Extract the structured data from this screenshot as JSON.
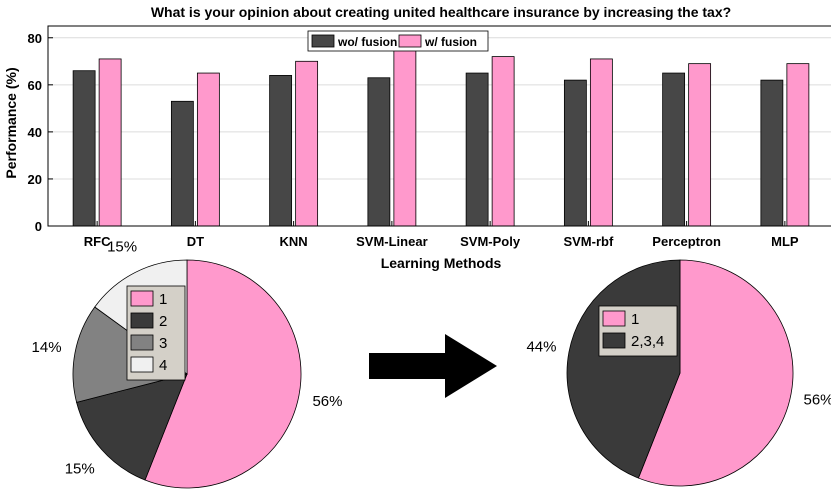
{
  "colors": {
    "without_fusion": "#474747",
    "with_fusion": "#ff99cc",
    "pie_1": "#ff99cc",
    "pie_2": "#3a3a3a",
    "pie_3": "#828282",
    "pie_4": "#f0f0f0",
    "legend_bg": "#d4d0c8",
    "arrow": "#000000"
  },
  "chart_data": [
    {
      "type": "bar",
      "title": "What is your opinion about creating united healthcare insurance by increasing the tax?",
      "xlabel": "Learning Methods",
      "ylabel": "Performance (%)",
      "ylim": [
        0,
        85
      ],
      "yticks": [
        0,
        20,
        40,
        60,
        80
      ],
      "grid": true,
      "legend_position": "top-center",
      "categories": [
        "RFC",
        "DT",
        "KNN",
        "SVM-Linear",
        "SVM-Poly",
        "SVM-rbf",
        "Perceptron",
        "MLP"
      ],
      "series": [
        {
          "name": "wo/ fusion",
          "values": [
            66,
            53,
            64,
            63,
            65,
            62,
            65,
            62
          ]
        },
        {
          "name": "w/ fusion",
          "values": [
            71,
            65,
            70,
            75,
            72,
            71,
            69,
            69
          ]
        }
      ]
    },
    {
      "type": "pie",
      "title": "",
      "legend_position": "top-left",
      "slices": [
        {
          "label": "1",
          "value": 56,
          "display": "56%"
        },
        {
          "label": "2",
          "value": 15,
          "display": "15%"
        },
        {
          "label": "3",
          "value": 14,
          "display": "14%"
        },
        {
          "label": "4",
          "value": 15,
          "display": "15%"
        }
      ]
    },
    {
      "type": "pie",
      "title": "",
      "legend_position": "top-left",
      "slices": [
        {
          "label": "1",
          "value": 56,
          "display": "56%"
        },
        {
          "label": "2,3,4",
          "value": 44,
          "display": "44%"
        }
      ]
    }
  ]
}
